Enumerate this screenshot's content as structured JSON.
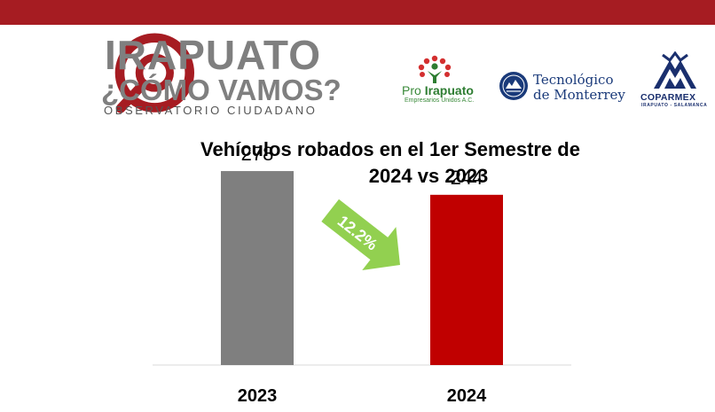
{
  "header": {
    "logo_title": "IRAPUATO",
    "logo_subtitle": "¿CÓMO VAMOS?",
    "logo_tagline": "OBSERVATORIO CIUDADANO",
    "partner_1_name_a": "Pro ",
    "partner_1_name_b": "Irapuato",
    "partner_1_sub": "Empresarios Unidos A.C.",
    "partner_2_line1": "Tecnológico",
    "partner_2_line2": "de Monterrey",
    "partner_3_name": "COPARMEX",
    "partner_3_sub": "IRAPUATO - SALAMANCA",
    "bar_color": "#a61c22"
  },
  "chart_data": {
    "type": "bar",
    "title_line1": "Vehículos robados en el 1er Semestre de",
    "title_line2": "2024 vs 2023",
    "categories": [
      "2023",
      "2024"
    ],
    "values": [
      278,
      244
    ],
    "value_labels": [
      "278",
      "244"
    ],
    "colors": [
      "#7f7f7f",
      "#c00000"
    ],
    "annotation": "12.2%",
    "annotation_color": "#92d050",
    "ylim": [
      0,
      320
    ],
    "grid": false,
    "legend": "none"
  }
}
